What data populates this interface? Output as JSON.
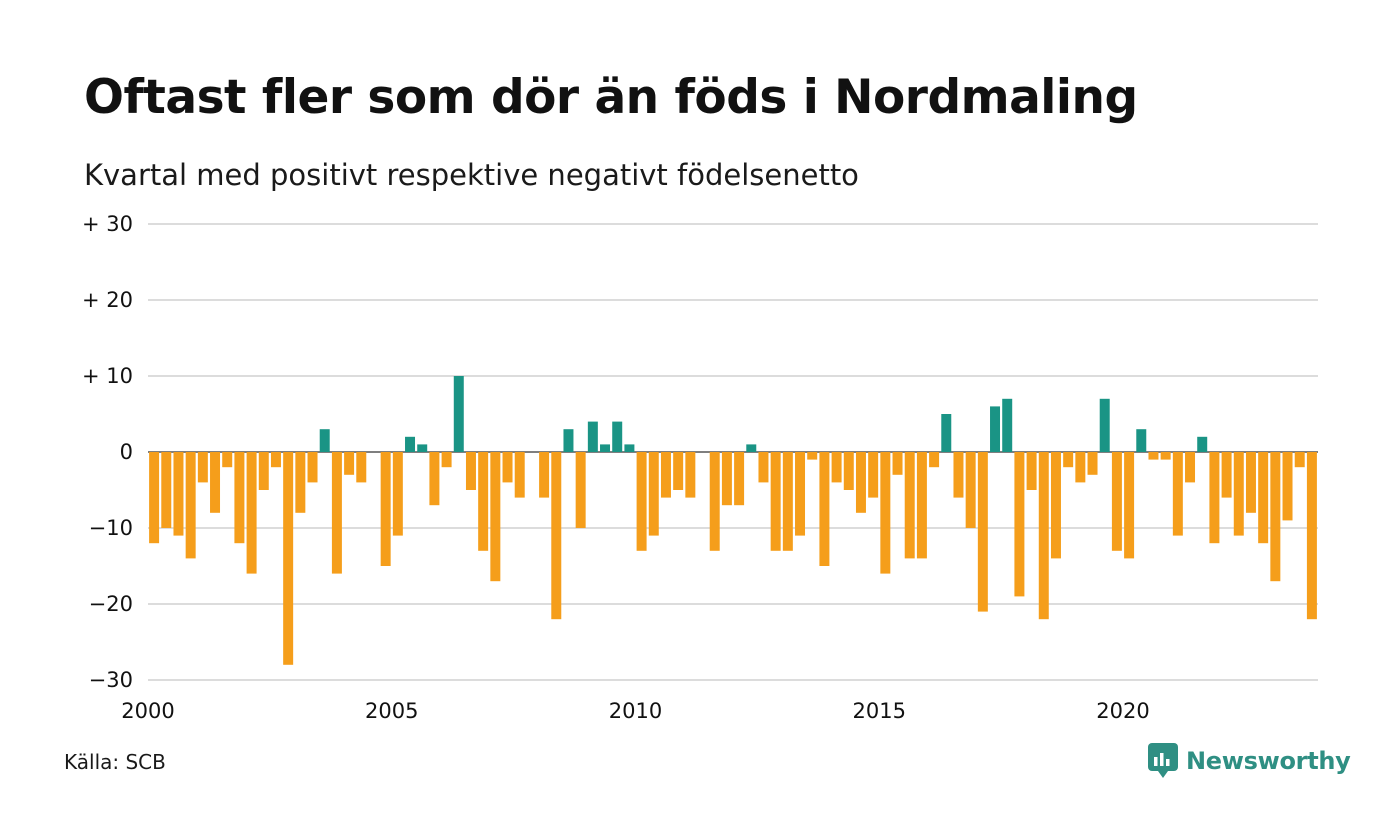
{
  "header": {
    "title": "Oftast fler som dör än föds i Nordmaling",
    "subtitle": "Kvartal med positivt respektive negativt födelsenetto"
  },
  "footer": {
    "source": "Källa: SCB",
    "brand": "Newsworthy",
    "brand_icon": "newsworthy-logo-icon"
  },
  "colors": {
    "positive": "#1a9485",
    "negative": "#f59e1b",
    "grid": "#dcdcdc",
    "brand": "#2f8f83"
  },
  "chart_data": {
    "type": "bar",
    "ylim": [
      -30,
      30
    ],
    "y_ticks": [
      {
        "value": 30,
        "label": "+ 30"
      },
      {
        "value": 20,
        "label": "+ 20"
      },
      {
        "value": 10,
        "label": "+ 10"
      },
      {
        "value": 0,
        "label": "0"
      },
      {
        "value": -10,
        "label": "−10"
      },
      {
        "value": -20,
        "label": "−20"
      },
      {
        "value": -30,
        "label": "−30"
      }
    ],
    "x_start_year": 2000,
    "x_ticks": [
      "2000",
      "2005",
      "2010",
      "2015",
      "2020"
    ],
    "periods_per_year": 4,
    "grid": true,
    "series": [
      {
        "values": [
          -12,
          -10,
          -11,
          -14,
          -4,
          -8,
          -2,
          -12,
          -16,
          -5,
          -2,
          -28,
          -8,
          -4,
          3,
          -16,
          -3,
          -4,
          0,
          -15,
          -11,
          2,
          1,
          -7,
          -2,
          10,
          -5,
          -13,
          -17,
          -4,
          -6,
          0,
          -6,
          -22,
          3,
          -10,
          4,
          1,
          4,
          1,
          -13,
          -11,
          -6,
          -5,
          -6,
          0,
          -13,
          -7,
          -7,
          1,
          -4,
          -13,
          -13,
          -11,
          -1,
          -15,
          -4,
          -5,
          -8,
          -6,
          -16,
          -3,
          -14,
          -14,
          -2,
          5,
          -6,
          -10,
          -21,
          6,
          7,
          -19,
          -5,
          -22,
          -14,
          -2,
          -4,
          -3,
          7,
          -13,
          -14,
          3,
          -1,
          -1,
          -11,
          -4,
          2,
          -12,
          -6,
          -11,
          -8,
          -12,
          -17,
          -9,
          -2,
          -22
        ]
      }
    ]
  }
}
